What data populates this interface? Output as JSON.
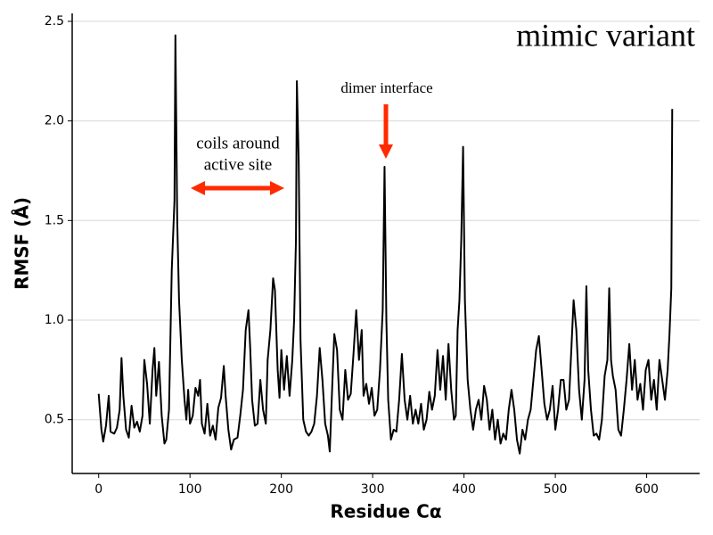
{
  "chart_data": {
    "type": "line",
    "title": "mimic variant",
    "x_label": "Residue Cα",
    "y_label": "RMSF (Å)",
    "xlim": [
      -29,
      658
    ],
    "ylim": [
      0.23,
      2.54
    ],
    "xticks": [
      0,
      100,
      200,
      300,
      400,
      500,
      600
    ],
    "yticks": [
      0.5,
      {
        "value": 1.0,
        "label": "1.0"
      },
      1.5,
      {
        "value": 2.0,
        "label": "2.0"
      },
      2.5
    ],
    "grid": true,
    "annotations": [
      {
        "lines": [
          "coils around",
          "active site"
        ]
      },
      {
        "lines": [
          "dimer interface"
        ]
      }
    ],
    "x": [
      0,
      3,
      5,
      8,
      11,
      13,
      17,
      20,
      23,
      25,
      27,
      30,
      33,
      36,
      39,
      42,
      45,
      48,
      50,
      53,
      56,
      59,
      61,
      63,
      66,
      69,
      72,
      74,
      77,
      80,
      83,
      84,
      86,
      88,
      91,
      94,
      96,
      98,
      100,
      103,
      106,
      109,
      111,
      113,
      116,
      119,
      122,
      125,
      128,
      131,
      134,
      137,
      139,
      142,
      145,
      148,
      152,
      155,
      158,
      161,
      164,
      166,
      168,
      171,
      174,
      177,
      180,
      183,
      185,
      188,
      191,
      193,
      196,
      198,
      200,
      203,
      206,
      209,
      212,
      214,
      216,
      217,
      219,
      221,
      224,
      227,
      230,
      233,
      236,
      239,
      242,
      245,
      248,
      251,
      253,
      256,
      258,
      261,
      264,
      267,
      270,
      273,
      276,
      279,
      282,
      285,
      288,
      290,
      293,
      296,
      299,
      302,
      305,
      308,
      311,
      313,
      315,
      317,
      320,
      323,
      326,
      329,
      332,
      335,
      338,
      341,
      344,
      347,
      350,
      353,
      356,
      359,
      362,
      365,
      368,
      371,
      374,
      377,
      380,
      383,
      386,
      389,
      391,
      393,
      395,
      397,
      399,
      401,
      404,
      407,
      410,
      413,
      416,
      419,
      422,
      425,
      428,
      431,
      434,
      437,
      440,
      443,
      446,
      449,
      452,
      455,
      458,
      461,
      464,
      467,
      470,
      473,
      476,
      479,
      482,
      485,
      488,
      491,
      494,
      497,
      500,
      503,
      506,
      509,
      512,
      515,
      518,
      520,
      523,
      526,
      529,
      532,
      534,
      536,
      539,
      542,
      545,
      548,
      551,
      554,
      557,
      559,
      561,
      563,
      566,
      569,
      572,
      575,
      578,
      581,
      584,
      587,
      590,
      593,
      596,
      599,
      602,
      605,
      608,
      611,
      614,
      617,
      620,
      623,
      625,
      627,
      628
    ],
    "series": [
      {
        "name": "RMSF",
        "color": "#000000",
        "values": [
          0.63,
          0.45,
          0.39,
          0.47,
          0.62,
          0.44,
          0.43,
          0.46,
          0.55,
          0.81,
          0.62,
          0.45,
          0.41,
          0.57,
          0.46,
          0.49,
          0.44,
          0.52,
          0.8,
          0.68,
          0.48,
          0.75,
          0.86,
          0.62,
          0.79,
          0.52,
          0.38,
          0.4,
          0.55,
          1.25,
          1.6,
          2.43,
          1.5,
          1.1,
          0.8,
          0.6,
          0.5,
          0.65,
          0.48,
          0.52,
          0.66,
          0.62,
          0.7,
          0.48,
          0.43,
          0.58,
          0.42,
          0.47,
          0.4,
          0.56,
          0.61,
          0.77,
          0.62,
          0.45,
          0.35,
          0.4,
          0.41,
          0.52,
          0.65,
          0.95,
          1.05,
          0.85,
          0.6,
          0.47,
          0.48,
          0.7,
          0.55,
          0.48,
          0.8,
          0.95,
          1.21,
          1.15,
          0.75,
          0.61,
          0.85,
          0.65,
          0.82,
          0.62,
          0.8,
          1.0,
          1.4,
          2.2,
          1.8,
          0.9,
          0.5,
          0.44,
          0.42,
          0.44,
          0.48,
          0.62,
          0.86,
          0.7,
          0.48,
          0.42,
          0.34,
          0.7,
          0.93,
          0.85,
          0.55,
          0.5,
          0.75,
          0.6,
          0.63,
          0.83,
          1.05,
          0.8,
          0.95,
          0.62,
          0.68,
          0.58,
          0.66,
          0.52,
          0.55,
          0.75,
          1.05,
          1.77,
          1.0,
          0.6,
          0.4,
          0.45,
          0.44,
          0.6,
          0.83,
          0.6,
          0.5,
          0.62,
          0.48,
          0.55,
          0.48,
          0.58,
          0.45,
          0.5,
          0.64,
          0.55,
          0.62,
          0.85,
          0.65,
          0.82,
          0.6,
          0.88,
          0.65,
          0.5,
          0.52,
          0.95,
          1.1,
          1.4,
          1.87,
          1.1,
          0.7,
          0.55,
          0.45,
          0.55,
          0.6,
          0.5,
          0.67,
          0.6,
          0.45,
          0.55,
          0.4,
          0.5,
          0.38,
          0.43,
          0.4,
          0.55,
          0.65,
          0.55,
          0.4,
          0.33,
          0.45,
          0.4,
          0.5,
          0.55,
          0.7,
          0.85,
          0.92,
          0.75,
          0.58,
          0.5,
          0.55,
          0.67,
          0.45,
          0.55,
          0.7,
          0.7,
          0.55,
          0.6,
          0.9,
          1.1,
          0.95,
          0.65,
          0.5,
          0.7,
          1.17,
          0.75,
          0.55,
          0.42,
          0.43,
          0.4,
          0.5,
          0.72,
          0.8,
          1.16,
          0.8,
          0.72,
          0.65,
          0.45,
          0.42,
          0.55,
          0.7,
          0.88,
          0.65,
          0.8,
          0.6,
          0.68,
          0.55,
          0.75,
          0.8,
          0.6,
          0.7,
          0.55,
          0.8,
          0.7,
          0.6,
          0.75,
          0.93,
          1.16,
          2.06
        ]
      }
    ]
  }
}
